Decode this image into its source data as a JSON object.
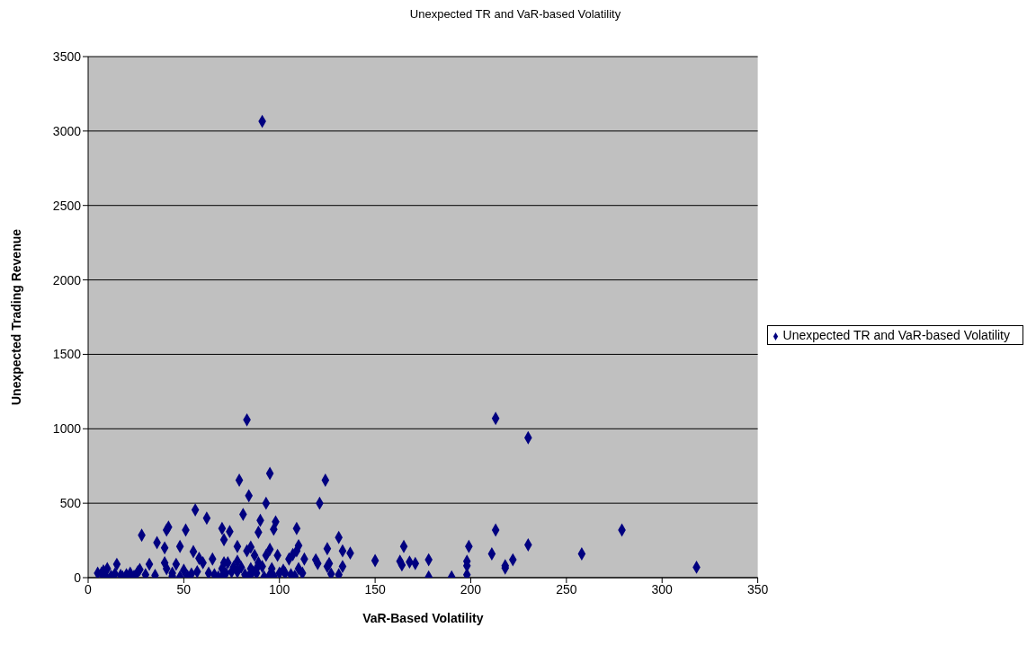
{
  "chart_data": {
    "type": "scatter",
    "title": "Unexpected TR and VaR-based Volatility",
    "xlabel": "VaR-Based Volatility",
    "ylabel": "Unexpected Trading Revenue",
    "xlim": [
      0,
      350
    ],
    "xticks": [
      0,
      50,
      100,
      150,
      200,
      250,
      300,
      350
    ],
    "ylim": [
      0,
      3500
    ],
    "yticks": [
      0,
      500,
      1000,
      1500,
      2000,
      2500,
      3000,
      3500
    ],
    "grid": "y",
    "legend": "right",
    "marker": "diamond",
    "series": [
      {
        "name": "Unexpected TR and VaR-based Volatility",
        "color": "#000080",
        "x": [
          91,
          83,
          213,
          230,
          95,
          79,
          124,
          84,
          121,
          93,
          56,
          81,
          62,
          90,
          98,
          109,
          97,
          42,
          41,
          51,
          70,
          74,
          89,
          28,
          131,
          213,
          279,
          230,
          258,
          318,
          36,
          48,
          78,
          85,
          110,
          165,
          199,
          125,
          133,
          137,
          109,
          95,
          40,
          55,
          58,
          65,
          71,
          107,
          105,
          113,
          119,
          120,
          126,
          125,
          133,
          131,
          127,
          150,
          163,
          164,
          168,
          171,
          178,
          178,
          190,
          198,
          198,
          198,
          211,
          218,
          218,
          222,
          32,
          20,
          15,
          10,
          8,
          7,
          12,
          18,
          24,
          26,
          30,
          40,
          41,
          44,
          46,
          50,
          52,
          54,
          60,
          66,
          70,
          73,
          75,
          78,
          80,
          82,
          85,
          88,
          89,
          91,
          93,
          96,
          97,
          100,
          102,
          106,
          108,
          110,
          112,
          76,
          86,
          70,
          63,
          68,
          35,
          22,
          5,
          9,
          14,
          17,
          27,
          44,
          48,
          57,
          72,
          84,
          92,
          95,
          103,
          78,
          99,
          88,
          83,
          87,
          71
        ],
        "values": [
          3065,
          1060,
          1070,
          940,
          700,
          655,
          655,
          550,
          500,
          500,
          455,
          425,
          400,
          385,
          375,
          330,
          325,
          340,
          320,
          320,
          330,
          310,
          305,
          285,
          270,
          320,
          320,
          220,
          160,
          70,
          235,
          210,
          210,
          205,
          215,
          210,
          210,
          195,
          180,
          165,
          180,
          190,
          200,
          175,
          130,
          125,
          255,
          155,
          125,
          125,
          120,
          95,
          95,
          75,
          75,
          20,
          25,
          115,
          110,
          85,
          105,
          95,
          120,
          5,
          5,
          110,
          80,
          20,
          160,
          80,
          65,
          120,
          90,
          20,
          90,
          60,
          45,
          30,
          10,
          5,
          10,
          40,
          20,
          100,
          60,
          30,
          90,
          50,
          10,
          25,
          100,
          20,
          10,
          100,
          40,
          110,
          70,
          20,
          60,
          30,
          100,
          75,
          150,
          60,
          10,
          30,
          50,
          20,
          10,
          60,
          30,
          70,
          40,
          60,
          30,
          5,
          15,
          30,
          30,
          15,
          25,
          15,
          55,
          10,
          5,
          40,
          30,
          10,
          5,
          20,
          30,
          40,
          150,
          60,
          180,
          150,
          100
        ]
      }
    ]
  }
}
